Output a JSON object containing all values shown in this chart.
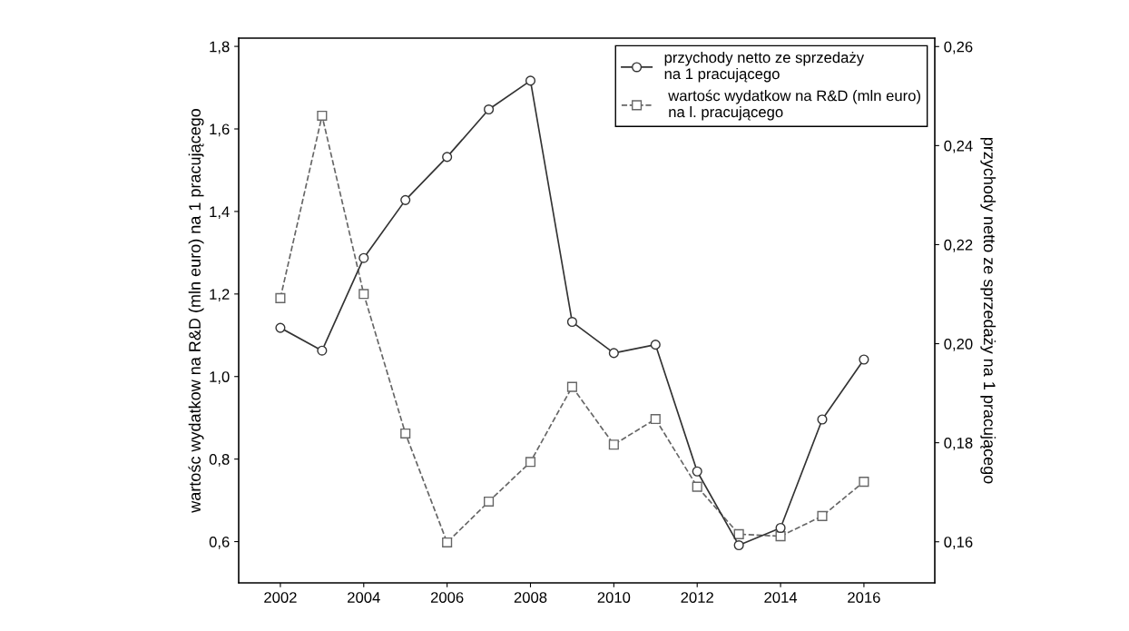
{
  "chart_data": {
    "type": "line",
    "ylabel": "wartośc wydatkow na R&D (mln euro) na 1 pracującego",
    "y2label": "przychody netto ze sprzedaży na 1 pracującego",
    "x": [
      2002,
      2003,
      2004,
      2005,
      2006,
      2007,
      2008,
      2009,
      2010,
      2011,
      2012,
      2013,
      2014,
      2015,
      2016
    ],
    "series": [
      {
        "name": "przychody netto ze sprzedaży\nna 1 pracującego",
        "color": "#333333",
        "marker": "circle",
        "line_style": "solid",
        "axis": "y2",
        "values": [
          0.2032,
          0.1986,
          0.2173,
          0.229,
          0.2377,
          0.2473,
          0.2531,
          0.2044,
          0.1981,
          0.1998,
          0.1742,
          0.1593,
          0.1628,
          0.1847,
          0.1968
        ]
      },
      {
        "name": " wartośc wydatkow na R&D (mln euro)\n na l. pracującego",
        "color": "#666666",
        "marker": "square",
        "line_style": "dashed",
        "values": [
          1.19,
          1.632,
          1.2,
          0.862,
          0.598,
          0.697,
          0.793,
          0.975,
          0.835,
          0.897,
          0.733,
          0.618,
          0.613,
          0.662,
          0.745
        ]
      }
    ],
    "xlim": [
      2001,
      2017.7
    ],
    "xticks": [
      2002,
      2004,
      2006,
      2008,
      2010,
      2012,
      2014,
      2016
    ],
    "ylim": [
      0.5,
      1.82
    ],
    "yticks": [
      {
        "value": 0.6,
        "label": "0,6"
      },
      {
        "value": 0.8,
        "label": "0,8"
      },
      {
        "value": 1.0,
        "label": "1,0"
      },
      {
        "value": 1.2,
        "label": "1,2"
      },
      {
        "value": 1.4,
        "label": "1,4"
      },
      {
        "value": 1.6,
        "label": "1,6"
      },
      {
        "value": 1.8,
        "label": "1,8"
      }
    ],
    "y2lim": [
      0.1517,
      0.2617
    ],
    "y2ticks": [
      {
        "value": 0.16,
        "label": "0,16"
      },
      {
        "value": 0.18,
        "label": "0,18"
      },
      {
        "value": 0.2,
        "label": "0,20"
      },
      {
        "value": 0.22,
        "label": "0,22"
      },
      {
        "value": 0.24,
        "label": "0,24"
      },
      {
        "value": 0.26,
        "label": "0,26"
      }
    ],
    "legend": "top right",
    "grid": false
  }
}
